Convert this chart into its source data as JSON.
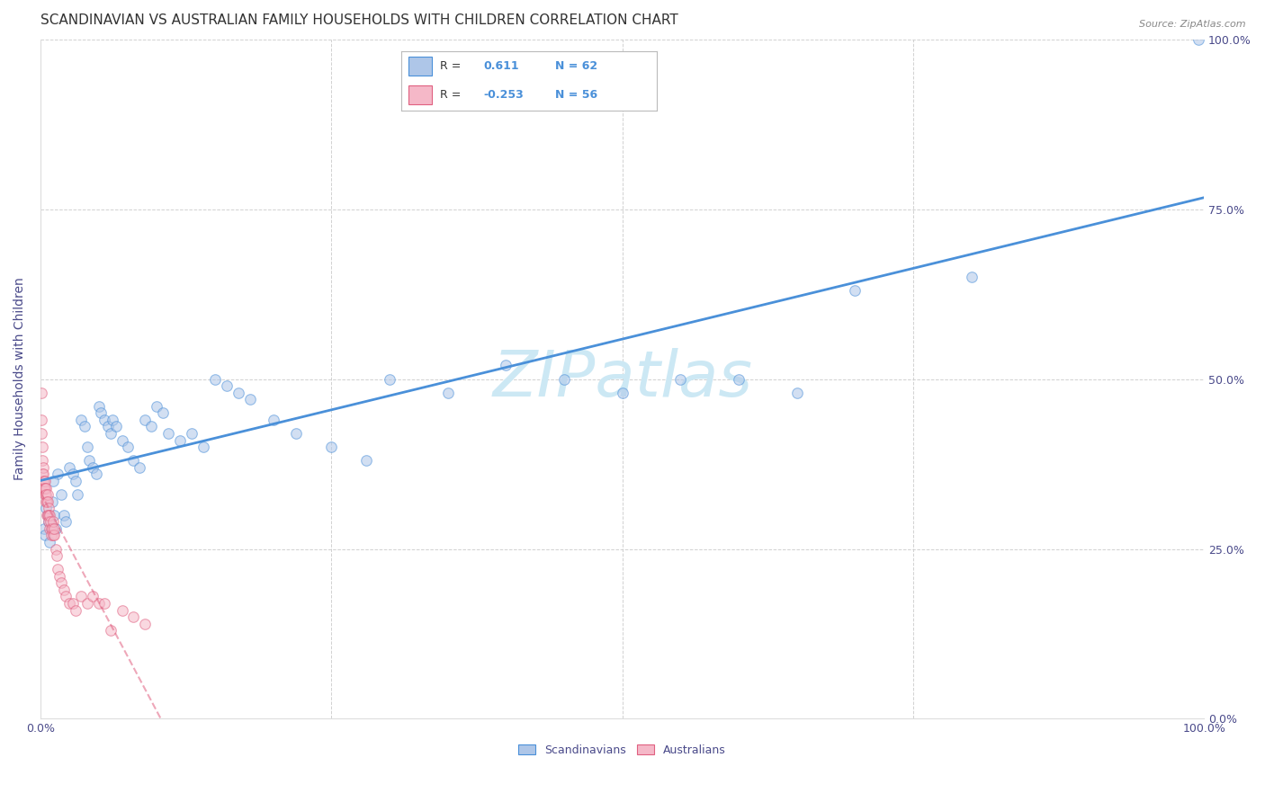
{
  "title": "SCANDINAVIAN VS AUSTRALIAN FAMILY HOUSEHOLDS WITH CHILDREN CORRELATION CHART",
  "source": "Source: ZipAtlas.com",
  "ylabel": "Family Households with Children",
  "watermark": "ZIPatlas",
  "legend_entries": [
    {
      "label": "Scandinavians",
      "R": 0.611,
      "N": 62,
      "color": "#aec6e8",
      "line_color": "#4a90d9"
    },
    {
      "label": "Australians",
      "R": -0.253,
      "N": 56,
      "color": "#f5b8c8",
      "line_color": "#e06080"
    }
  ],
  "scand_x": [
    1.2,
    1.5,
    1.8,
    0.3,
    0.4,
    0.5,
    0.6,
    0.7,
    0.8,
    1.0,
    1.1,
    1.3,
    2.0,
    2.2,
    2.5,
    2.8,
    3.0,
    3.2,
    3.5,
    3.8,
    4.0,
    4.2,
    4.5,
    4.8,
    5.0,
    5.2,
    5.5,
    5.8,
    6.0,
    6.2,
    6.5,
    7.0,
    7.5,
    8.0,
    8.5,
    9.0,
    9.5,
    10.0,
    10.5,
    11.0,
    12.0,
    13.0,
    14.0,
    15.0,
    16.0,
    17.0,
    18.0,
    20.0,
    22.0,
    25.0,
    28.0,
    30.0,
    35.0,
    40.0,
    45.0,
    50.0,
    55.0,
    60.0,
    65.0,
    70.0,
    80.0,
    99.5
  ],
  "scand_y": [
    30.0,
    36.0,
    33.0,
    28.0,
    27.0,
    31.0,
    30.0,
    29.0,
    26.0,
    32.0,
    35.0,
    28.0,
    30.0,
    29.0,
    37.0,
    36.0,
    35.0,
    33.0,
    44.0,
    43.0,
    40.0,
    38.0,
    37.0,
    36.0,
    46.0,
    45.0,
    44.0,
    43.0,
    42.0,
    44.0,
    43.0,
    41.0,
    40.0,
    38.0,
    37.0,
    44.0,
    43.0,
    46.0,
    45.0,
    42.0,
    41.0,
    42.0,
    40.0,
    50.0,
    49.0,
    48.0,
    47.0,
    44.0,
    42.0,
    40.0,
    38.0,
    50.0,
    48.0,
    52.0,
    50.0,
    48.0,
    50.0,
    50.0,
    48.0,
    63.0,
    65.0,
    100.0
  ],
  "aust_x": [
    0.05,
    0.08,
    0.1,
    0.12,
    0.15,
    0.18,
    0.2,
    0.22,
    0.25,
    0.28,
    0.3,
    0.32,
    0.35,
    0.38,
    0.4,
    0.42,
    0.45,
    0.48,
    0.5,
    0.55,
    0.58,
    0.6,
    0.62,
    0.65,
    0.68,
    0.7,
    0.72,
    0.75,
    0.8,
    0.85,
    0.9,
    0.95,
    1.0,
    1.05,
    1.1,
    1.15,
    1.2,
    1.3,
    1.4,
    1.5,
    1.6,
    1.8,
    2.0,
    2.2,
    2.5,
    2.8,
    3.0,
    3.5,
    4.0,
    4.5,
    5.0,
    5.5,
    6.0,
    7.0,
    8.0,
    9.0
  ],
  "aust_y": [
    48.0,
    44.0,
    42.0,
    40.0,
    38.0,
    36.0,
    37.0,
    35.0,
    36.0,
    34.0,
    35.0,
    34.0,
    34.0,
    33.0,
    35.0,
    34.0,
    32.0,
    34.0,
    33.0,
    32.0,
    30.0,
    33.0,
    32.0,
    30.0,
    31.0,
    30.0,
    29.0,
    28.0,
    30.0,
    29.0,
    28.0,
    27.0,
    28.0,
    27.0,
    29.0,
    27.0,
    28.0,
    25.0,
    24.0,
    22.0,
    21.0,
    20.0,
    19.0,
    18.0,
    17.0,
    17.0,
    16.0,
    18.0,
    17.0,
    18.0,
    17.0,
    17.0,
    13.0,
    16.0,
    15.0,
    14.0
  ],
  "background_color": "#ffffff",
  "grid_color": "#cccccc",
  "axis_color": "#4a4a8a",
  "title_color": "#333333",
  "title_fontsize": 11,
  "axis_label_fontsize": 10,
  "tick_fontsize": 9,
  "watermark_color": "#cce8f4",
  "watermark_fontsize": 52,
  "marker_size": 70,
  "marker_alpha": 0.55
}
